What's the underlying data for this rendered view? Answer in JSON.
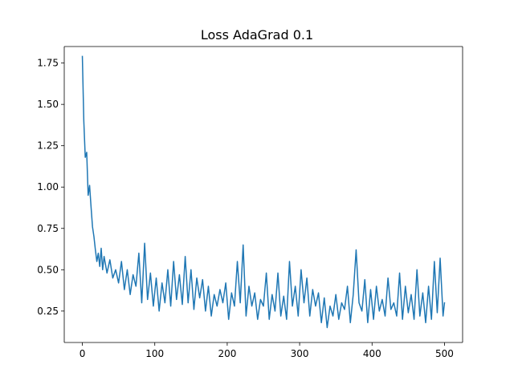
{
  "chart_data": {
    "type": "line",
    "title": "Loss AdaGrad 0.1",
    "xlabel": "",
    "ylabel": "",
    "xlim": [
      -25,
      525
    ],
    "ylim": [
      0.06,
      1.85
    ],
    "grid": false,
    "legend": "none",
    "x_ticks": [
      {
        "value": 0,
        "label": "0"
      },
      {
        "value": 100,
        "label": "100"
      },
      {
        "value": 200,
        "label": "200"
      },
      {
        "value": 300,
        "label": "300"
      },
      {
        "value": 400,
        "label": "400"
      },
      {
        "value": 500,
        "label": "500"
      }
    ],
    "y_ticks": [
      {
        "value": 0.25,
        "label": "0.25"
      },
      {
        "value": 0.5,
        "label": "0.50"
      },
      {
        "value": 0.75,
        "label": "0.75"
      },
      {
        "value": 1.0,
        "label": "1.00"
      },
      {
        "value": 1.25,
        "label": "1.25"
      },
      {
        "value": 1.5,
        "label": "1.50"
      },
      {
        "value": 1.75,
        "label": "1.75"
      }
    ],
    "series": [
      {
        "color": "#1f77b4",
        "x": [
          0,
          2,
          4,
          6,
          8,
          10,
          12,
          14,
          16,
          18,
          20,
          22,
          24,
          26,
          28,
          30,
          34,
          38,
          42,
          46,
          50,
          54,
          58,
          62,
          66,
          70,
          74,
          78,
          82,
          86,
          90,
          94,
          98,
          102,
          106,
          110,
          114,
          118,
          122,
          126,
          130,
          134,
          138,
          142,
          146,
          150,
          154,
          158,
          162,
          166,
          170,
          174,
          178,
          182,
          186,
          190,
          194,
          198,
          202,
          206,
          210,
          214,
          218,
          222,
          226,
          230,
          234,
          238,
          242,
          246,
          250,
          254,
          258,
          262,
          266,
          270,
          274,
          278,
          282,
          286,
          290,
          294,
          298,
          302,
          306,
          310,
          314,
          318,
          322,
          326,
          330,
          334,
          338,
          342,
          346,
          350,
          354,
          358,
          362,
          366,
          370,
          374,
          378,
          382,
          386,
          390,
          394,
          398,
          402,
          406,
          410,
          414,
          418,
          422,
          426,
          430,
          434,
          438,
          442,
          446,
          450,
          454,
          458,
          462,
          466,
          470,
          474,
          478,
          482,
          486,
          490,
          494,
          498,
          500
        ],
        "y": [
          1.79,
          1.4,
          1.18,
          1.21,
          0.95,
          1.01,
          0.88,
          0.76,
          0.7,
          0.62,
          0.55,
          0.6,
          0.52,
          0.63,
          0.5,
          0.58,
          0.48,
          0.56,
          0.45,
          0.5,
          0.42,
          0.55,
          0.38,
          0.5,
          0.35,
          0.47,
          0.4,
          0.6,
          0.3,
          0.66,
          0.32,
          0.48,
          0.28,
          0.45,
          0.25,
          0.42,
          0.3,
          0.5,
          0.28,
          0.55,
          0.32,
          0.47,
          0.29,
          0.58,
          0.3,
          0.5,
          0.26,
          0.45,
          0.33,
          0.44,
          0.25,
          0.4,
          0.22,
          0.35,
          0.28,
          0.38,
          0.3,
          0.42,
          0.2,
          0.36,
          0.28,
          0.55,
          0.3,
          0.65,
          0.22,
          0.4,
          0.28,
          0.36,
          0.2,
          0.32,
          0.28,
          0.48,
          0.2,
          0.35,
          0.25,
          0.48,
          0.22,
          0.34,
          0.2,
          0.55,
          0.28,
          0.4,
          0.22,
          0.5,
          0.3,
          0.45,
          0.22,
          0.38,
          0.28,
          0.36,
          0.18,
          0.33,
          0.15,
          0.28,
          0.22,
          0.35,
          0.2,
          0.3,
          0.26,
          0.4,
          0.18,
          0.35,
          0.62,
          0.3,
          0.25,
          0.44,
          0.18,
          0.38,
          0.2,
          0.4,
          0.25,
          0.32,
          0.22,
          0.45,
          0.26,
          0.3,
          0.22,
          0.48,
          0.2,
          0.4,
          0.24,
          0.35,
          0.2,
          0.5,
          0.22,
          0.36,
          0.18,
          0.4,
          0.2,
          0.55,
          0.24,
          0.57,
          0.22,
          0.3
        ]
      }
    ]
  }
}
